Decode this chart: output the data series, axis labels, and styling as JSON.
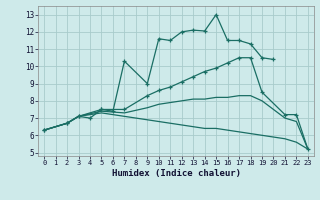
{
  "xlabel": "Humidex (Indice chaleur)",
  "bg_color": "#ceeaea",
  "grid_color": "#a8cccc",
  "line_color": "#1a6e64",
  "xlim": [
    -0.5,
    23.5
  ],
  "ylim": [
    4.8,
    13.5
  ],
  "xtick_labels": [
    "0",
    "1",
    "2",
    "3",
    "4",
    "5",
    "6",
    "7",
    "8",
    "9",
    "10",
    "11",
    "12",
    "13",
    "14",
    "15",
    "16",
    "17",
    "18",
    "19",
    "20",
    "21",
    "22",
    "23"
  ],
  "xticks": [
    0,
    1,
    2,
    3,
    4,
    5,
    6,
    7,
    8,
    9,
    10,
    11,
    12,
    13,
    14,
    15,
    16,
    17,
    18,
    19,
    20,
    21,
    22,
    23
  ],
  "yticks": [
    5,
    6,
    7,
    8,
    9,
    10,
    11,
    12,
    13
  ],
  "curve1_x": [
    0,
    2,
    3,
    4,
    5,
    6,
    7,
    9,
    10,
    11,
    12,
    13,
    14,
    15,
    16,
    17,
    18,
    19,
    20
  ],
  "curve1_y": [
    6.3,
    6.7,
    7.1,
    7.0,
    7.5,
    7.4,
    10.3,
    9.0,
    11.6,
    11.5,
    12.0,
    12.1,
    12.05,
    13.0,
    11.5,
    11.5,
    11.3,
    10.5,
    10.4
  ],
  "curve2_x": [
    0,
    2,
    3,
    5,
    7,
    9,
    10,
    11,
    12,
    13,
    14,
    15,
    16,
    17,
    18,
    19,
    21,
    22,
    23
  ],
  "curve2_y": [
    6.3,
    6.7,
    7.1,
    7.5,
    7.5,
    8.3,
    8.6,
    8.8,
    9.1,
    9.4,
    9.7,
    9.9,
    10.2,
    10.5,
    10.5,
    8.5,
    7.2,
    7.2,
    5.2
  ],
  "curve3_x": [
    0,
    2,
    3,
    5,
    7,
    9,
    10,
    11,
    12,
    13,
    14,
    15,
    16,
    17,
    18,
    19,
    21,
    22,
    23
  ],
  "curve3_y": [
    6.3,
    6.7,
    7.1,
    7.4,
    7.3,
    7.6,
    7.8,
    7.9,
    8.0,
    8.1,
    8.1,
    8.2,
    8.2,
    8.3,
    8.3,
    8.0,
    7.0,
    6.8,
    5.2
  ],
  "curve4_x": [
    0,
    2,
    3,
    5,
    7,
    9,
    10,
    11,
    12,
    13,
    14,
    15,
    16,
    17,
    18,
    19,
    21,
    22,
    23
  ],
  "curve4_y": [
    6.3,
    6.7,
    7.1,
    7.3,
    7.1,
    6.9,
    6.8,
    6.7,
    6.6,
    6.5,
    6.4,
    6.4,
    6.3,
    6.2,
    6.1,
    6.0,
    5.8,
    5.6,
    5.2
  ]
}
